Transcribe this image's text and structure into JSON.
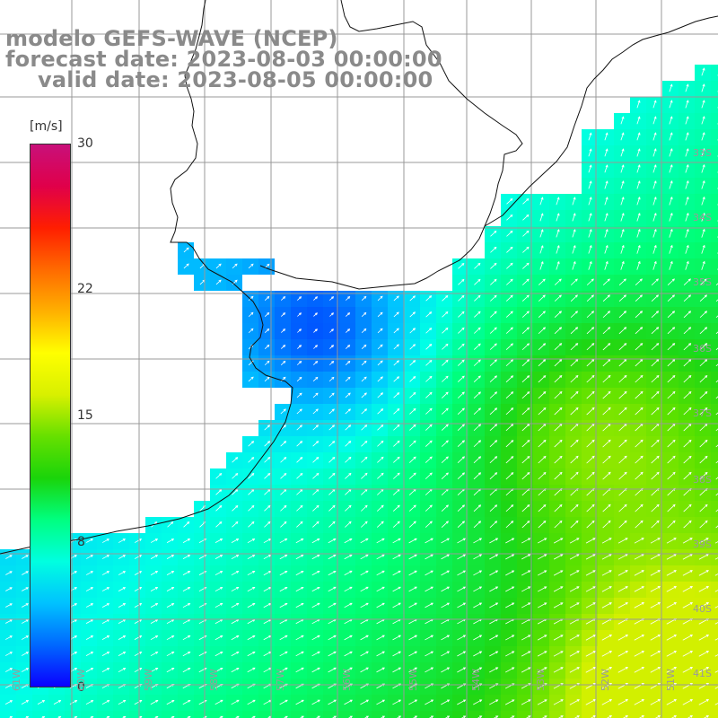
{
  "title": {
    "model": "modelo GEFS-WAVE (NCEP)",
    "forecast": "forecast date: 2023-08-03 00:00:00",
    "valid": "valid date: 2023-08-05 00:00:00"
  },
  "legend": {
    "unit": "[m/s]",
    "ticks": [
      {
        "label": "30",
        "value": 30
      },
      {
        "label": "22",
        "value": 22
      },
      {
        "label": "15",
        "value": 15
      },
      {
        "label": "8",
        "value": 8
      },
      {
        "label": "0",
        "value": 0
      }
    ],
    "colors": [
      "#0a00ff",
      "#0068ff",
      "#00c2ff",
      "#00ffe0",
      "#00ff80",
      "#1ad40a",
      "#66e000",
      "#d8f000",
      "#ffff00",
      "#ffb000",
      "#ff6a00",
      "#ff1e00",
      "#e0004a",
      "#c8107a"
    ]
  },
  "axes": {
    "lat_labels": [
      "33S",
      "34S",
      "35S",
      "36S",
      "37S",
      "38S",
      "39S",
      "40S",
      "41S"
    ],
    "lon_labels": [
      "61W",
      "60W",
      "59W",
      "58W",
      "57W",
      "56W",
      "55W",
      "54W",
      "53W",
      "52W",
      "51W"
    ]
  },
  "colors": {
    "land": "#ffffff",
    "grid": "#999999",
    "coast": "#111111",
    "arrow": "#ffffff"
  }
}
